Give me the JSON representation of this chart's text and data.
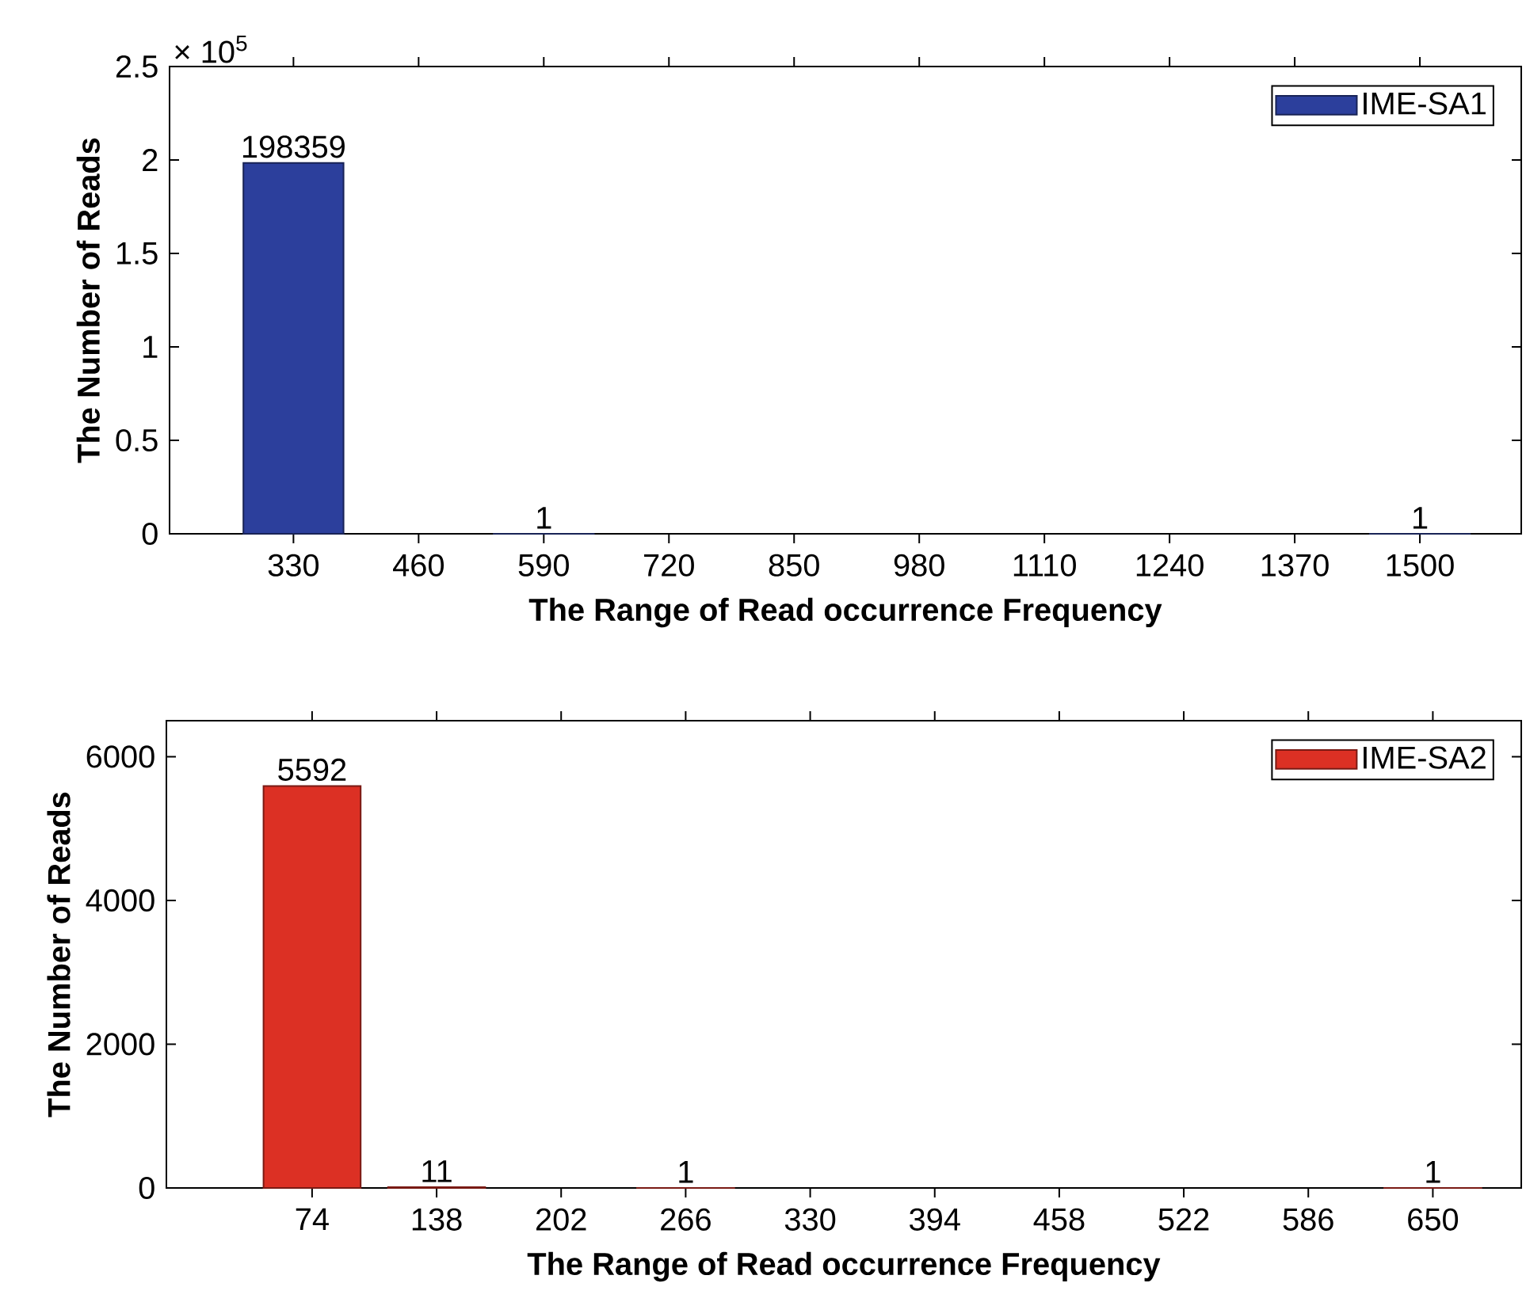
{
  "chart_data": [
    {
      "type": "bar",
      "xlabel": "The Range of Read occurrence Frequency",
      "ylabel": "The Number of Reads",
      "categories": [
        "330",
        "460",
        "590",
        "720",
        "850",
        "980",
        "1110",
        "1240",
        "1370",
        "1500"
      ],
      "series": [
        {
          "name": "IME-SA1",
          "color": "#2c3f9c",
          "values": [
            1.98359,
            null,
            1e-05,
            null,
            null,
            null,
            null,
            null,
            null,
            1e-05
          ]
        }
      ],
      "ylim": [
        0,
        2.5
      ],
      "yticks": [
        0,
        0.5,
        1,
        1.5,
        2,
        2.5
      ],
      "annotations": [
        "× 10$^{5}$",
        {
          "text": "198359",
          "x": "330",
          "y": 1.98359
        },
        {
          "text": "1",
          "x": "590",
          "y": 1e-05
        },
        {
          "text": "1",
          "x": "1500",
          "y": 1e-05
        }
      ],
      "legend": "top right"
    },
    {
      "type": "bar",
      "xlabel": "The Range of Read occurrence Frequency",
      "ylabel": "The Number of Reads",
      "categories": [
        "74",
        "138",
        "202",
        "266",
        "330",
        "394",
        "458",
        "522",
        "586",
        "650"
      ],
      "series": [
        {
          "name": "IME-SA2",
          "color": "#dc3024",
          "values": [
            5592,
            11,
            null,
            1,
            null,
            null,
            null,
            null,
            null,
            1
          ],
          "value_labels": [
            "5592",
            "11",
            null,
            "1",
            null,
            null,
            null,
            null,
            null,
            "1"
          ]
        }
      ],
      "ylim": [
        0,
        6500
      ],
      "yticks": [
        0,
        2000,
        4000,
        6000
      ],
      "legend": "top right"
    }
  ]
}
